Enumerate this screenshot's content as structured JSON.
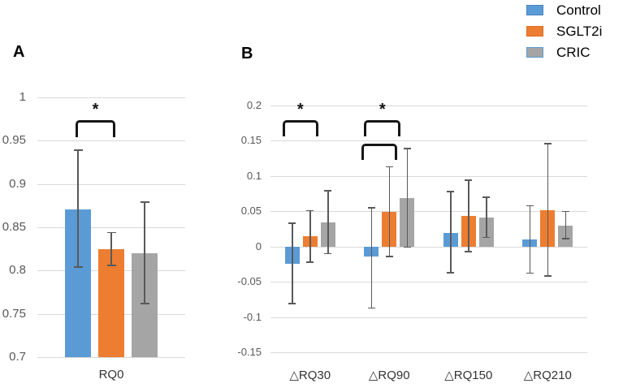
{
  "legend": {
    "items": [
      {
        "label": "Control",
        "color": "#5B9BD5",
        "border": "#4A86BF"
      },
      {
        "label": "SGLT2i",
        "color": "#ED7D31",
        "border": "#DD6E22"
      },
      {
        "label": "CRIC",
        "color": "#A5A5A5",
        "border": "#5B9BD5"
      }
    ]
  },
  "colors": {
    "control": "#5B9BD5",
    "sglt2i": "#ED7D31",
    "cric": "#A5A5A5",
    "error_bar": "#595959",
    "gridline": "#D9D9D9",
    "bracket": "#161616"
  },
  "chart_data": [
    {
      "panel_label": "A",
      "type": "bar",
      "categories": [
        "RQ0"
      ],
      "series": [
        {
          "name": "Control",
          "color": "#5B9BD5",
          "values": [
            0.871
          ],
          "error_low": [
            0.804
          ],
          "error_high": [
            0.939
          ]
        },
        {
          "name": "SGLT2i",
          "color": "#ED7D31",
          "values": [
            0.825
          ],
          "error_low": [
            0.806
          ],
          "error_high": [
            0.844
          ]
        },
        {
          "name": "CRIC",
          "color": "#A5A5A5",
          "values": [
            0.82
          ],
          "error_low": [
            0.762
          ],
          "error_high": [
            0.879
          ]
        }
      ],
      "ylim": [
        0.7,
        1.0
      ],
      "yticks": [
        1,
        0.95,
        0.9,
        0.85,
        0.8,
        0.75,
        0.7
      ],
      "baseline": 0.7,
      "grid": true,
      "xlabel": "",
      "ylabel": "",
      "title": "",
      "annotations": [
        {
          "type": "bracket",
          "label": "*",
          "cat": 0,
          "from_series": 0,
          "to_series": 1,
          "level": 0
        }
      ]
    },
    {
      "panel_label": "B",
      "type": "bar",
      "categories": [
        "△RQ30",
        "△RQ90",
        "△RQ150",
        "△RQ210"
      ],
      "series": [
        {
          "name": "Control",
          "color": "#5B9BD5",
          "values": [
            -0.025,
            -0.014,
            0.019,
            0.01
          ],
          "error_low": [
            -0.081,
            -0.087,
            -0.037,
            -0.038
          ],
          "error_high": [
            0.033,
            0.055,
            0.078,
            0.058
          ]
        },
        {
          "name": "SGLT2i",
          "color": "#ED7D31",
          "values": [
            0.015,
            0.049,
            0.043,
            0.052
          ],
          "error_low": [
            -0.022,
            -0.014,
            -0.007,
            -0.042
          ],
          "error_high": [
            0.051,
            0.113,
            0.094,
            0.146
          ]
        },
        {
          "name": "CRIC",
          "color": "#A5A5A5",
          "values": [
            0.034,
            0.069,
            0.041,
            0.03
          ],
          "error_low": [
            -0.01,
            -0.001,
            0.013,
            0.011
          ],
          "error_high": [
            0.079,
            0.139,
            0.07,
            0.05
          ]
        }
      ],
      "ylim": [
        -0.15,
        0.2
      ],
      "yticks": [
        0.2,
        0.15,
        0.1,
        0.05,
        0,
        -0.05,
        -0.1,
        -0.15
      ],
      "baseline": 0,
      "grid": true,
      "xlabel": "",
      "ylabel": "",
      "title": "",
      "annotations": [
        {
          "type": "bracket",
          "label": "*",
          "cat": 0,
          "from_series": 0,
          "to_series": 1,
          "level": 0
        },
        {
          "type": "bracket",
          "label": "*",
          "cat": 1,
          "from_series": 0,
          "to_series": 2,
          "level": 0
        },
        {
          "type": "bracket",
          "label": "",
          "cat": 1,
          "from_series": 0,
          "to_series": 1,
          "level": 1
        }
      ]
    }
  ]
}
